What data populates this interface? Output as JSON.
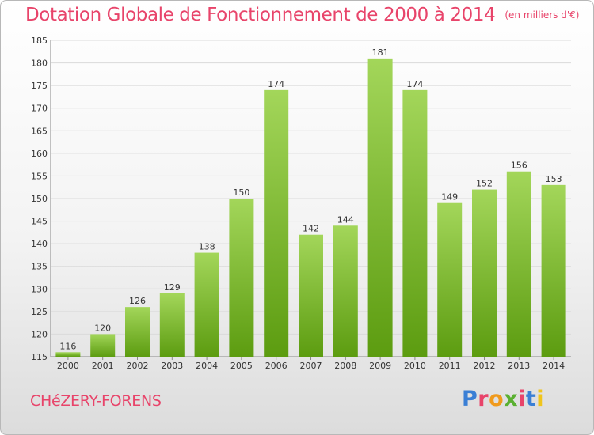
{
  "header": {
    "title": "Dotation Globale de Fonctionnement de 2000 à 2014",
    "unit": "(en milliers d'€)"
  },
  "footer": {
    "commune": "CHéZERY-FORENS",
    "logo_text": "Proxiti"
  },
  "colors": {
    "title": "#e8446a",
    "bar_top": "#9fd355",
    "bar_bottom": "#5e9e12",
    "grid": "#d9d9d9"
  },
  "chart_data": {
    "type": "bar",
    "title": "Dotation Globale de Fonctionnement de 2000 à 2014",
    "subtitle": "(en milliers d'€)",
    "categories": [
      "2000",
      "2001",
      "2002",
      "2003",
      "2004",
      "2005",
      "2006",
      "2007",
      "2008",
      "2009",
      "2010",
      "2011",
      "2012",
      "2013",
      "2014"
    ],
    "values": [
      116,
      120,
      126,
      129,
      138,
      150,
      174,
      142,
      144,
      181,
      174,
      149,
      152,
      156,
      153
    ],
    "ylim": [
      115,
      185
    ],
    "yticks": [
      115,
      120,
      125,
      130,
      135,
      140,
      145,
      150,
      155,
      160,
      165,
      170,
      175,
      180,
      185
    ],
    "grid": true,
    "data_labels": true
  }
}
